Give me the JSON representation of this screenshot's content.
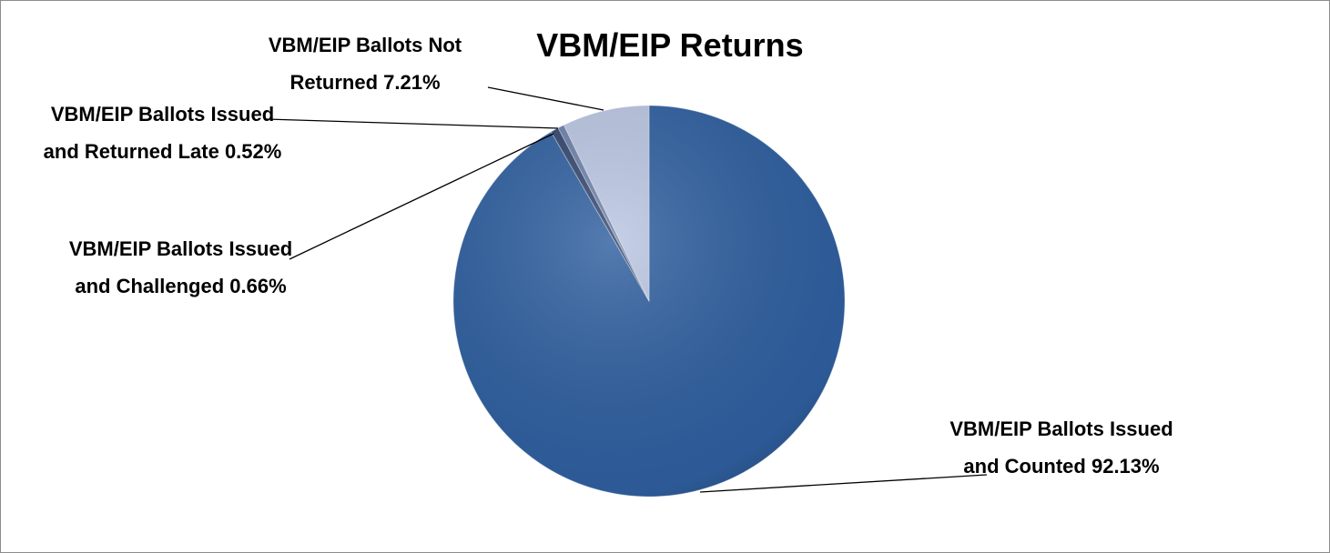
{
  "chart_data": {
    "type": "pie",
    "title": "VBM/EIP Returns",
    "categories": [
      "VBM/EIP Ballots Issued and Counted",
      "VBM/EIP Ballots Issued and Challenged",
      "VBM/EIP Ballots Issued and Returned Late",
      "VBM/EIP Ballots Not Returned"
    ],
    "values": [
      92.13,
      0.66,
      0.52,
      7.21
    ],
    "value_labels": [
      "92.13%",
      "0.66%",
      "0.52%",
      "7.21%"
    ],
    "colors": [
      "#2f5f9f",
      "#34466e",
      "#6c80aa",
      "#b9c5e1"
    ]
  }
}
